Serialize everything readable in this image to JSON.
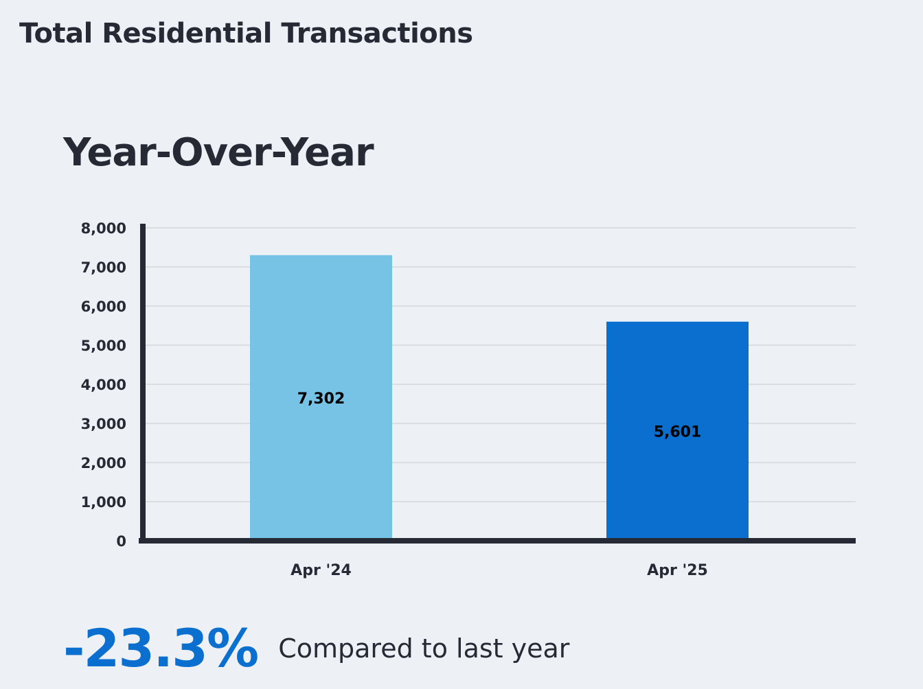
{
  "title": "Total Residential Transactions",
  "chart_heading": "Year-Over-Year",
  "chart_data": {
    "type": "bar",
    "categories": [
      "Apr '24",
      "Apr '25"
    ],
    "values": [
      7302,
      5601
    ],
    "value_labels": [
      "7,302",
      "5,601"
    ],
    "colors": [
      "#76c3e6",
      "#0b6fd0"
    ],
    "ylim": [
      0,
      8000
    ],
    "yticks": [
      0,
      1000,
      2000,
      3000,
      4000,
      5000,
      6000,
      7000,
      8000
    ],
    "ytick_labels": [
      "0",
      "1,000",
      "2,000",
      "3,000",
      "4,000",
      "5,000",
      "6,000",
      "7,000",
      "8,000"
    ],
    "grid": true,
    "xlabel": "",
    "ylabel": ""
  },
  "summary": {
    "change": "-23.3%",
    "caption": "Compared to last year"
  }
}
